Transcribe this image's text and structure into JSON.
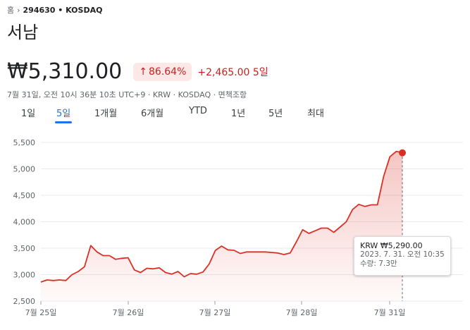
{
  "breadcrumb": {
    "home": "홈",
    "code": "294630 • KOSDAQ"
  },
  "stock": {
    "name": "서남"
  },
  "quote": {
    "price": "₩5,310.00",
    "percent": "86.64%",
    "change": "+2,465.00",
    "period": "5일",
    "timestamp": "7월 31일, 오전 10시 36분 10초 UTC+9 · KRW · KOSDAQ · 면책조항",
    "up_color": "#c5221f"
  },
  "tabs": [
    {
      "label": "1일",
      "active": false
    },
    {
      "label": "5일",
      "active": true
    },
    {
      "label": "1개월",
      "active": false
    },
    {
      "label": "6개월",
      "active": false
    },
    {
      "label": "YTD",
      "active": false
    },
    {
      "label": "1년",
      "active": false
    },
    {
      "label": "5년",
      "active": false
    },
    {
      "label": "최대",
      "active": false
    }
  ],
  "tooltip": {
    "title": "KRW ₩5,290.00",
    "datetime": "2023. 7. 31. 오전 10:35",
    "volume": "수량: 7.3만"
  },
  "chart_data": {
    "type": "line",
    "x_ticks": [
      "7월 25일",
      "7월 26일",
      "7월 27일",
      "7월 28일",
      "7월 31일"
    ],
    "y_ticks": [
      "5,500",
      "5,000",
      "4,500",
      "4,000",
      "3,500",
      "3,000",
      "2,500"
    ],
    "ylim": [
      2500,
      5500
    ],
    "line_color": "#d93025",
    "grid": true,
    "series": [
      {
        "values": [
          2860,
          2900,
          2890,
          2900,
          2890,
          3000,
          3060,
          3150,
          3550,
          3430,
          3360,
          3360,
          3290,
          3310,
          3320,
          3090,
          3040,
          3120,
          3110,
          3130,
          3040,
          3010,
          3060,
          2960,
          3020,
          3010,
          3050,
          3200,
          3460,
          3540,
          3470,
          3460,
          3400,
          3430,
          3430,
          3430,
          3430,
          3420,
          3410,
          3380,
          3410,
          3620,
          3850,
          3780,
          3830,
          3880,
          3880,
          3800,
          3900,
          4000,
          4230,
          4330,
          4290,
          4320,
          4320,
          4860,
          5230,
          5330,
          5310
        ]
      }
    ],
    "highlight": {
      "value": 5290
    }
  }
}
